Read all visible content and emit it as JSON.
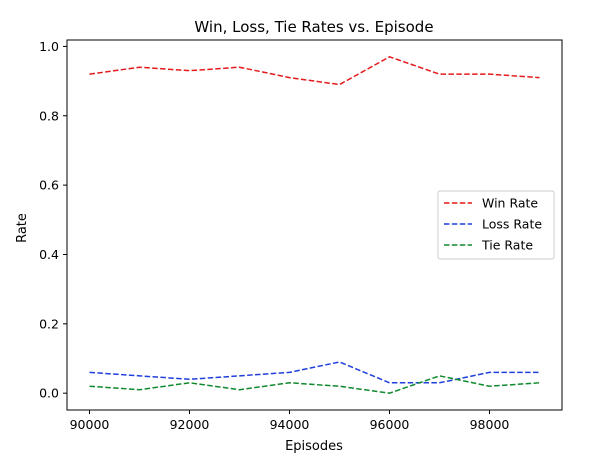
{
  "chart_data": {
    "type": "line",
    "title": "Win, Loss, Tie Rates vs. Episode",
    "xlabel": "Episodes",
    "ylabel": "Rate",
    "xlim": [
      89550,
      99450
    ],
    "ylim": [
      -0.0485,
      1.0185
    ],
    "xticks": [
      90000,
      92000,
      94000,
      96000,
      98000
    ],
    "yticks": [
      0.0,
      0.2,
      0.4,
      0.6,
      0.8,
      1.0
    ],
    "xtick_labels": [
      "90000",
      "92000",
      "94000",
      "96000",
      "98000"
    ],
    "ytick_labels": [
      "0.0",
      "0.2",
      "0.4",
      "0.6",
      "0.8",
      "1.0"
    ],
    "legend_position": "center-right",
    "grid": false,
    "x": [
      90000,
      91000,
      92000,
      93000,
      94000,
      95000,
      96000,
      97000,
      98000,
      99000
    ],
    "series": [
      {
        "name": "Win Rate",
        "color": "#e41a1c",
        "dash": "dashed",
        "values": [
          0.92,
          0.94,
          0.93,
          0.94,
          0.91,
          0.89,
          0.97,
          0.92,
          0.92,
          0.91
        ]
      },
      {
        "name": "Loss Rate",
        "color": "#1f3fdc",
        "dash": "dashed",
        "values": [
          0.06,
          0.05,
          0.04,
          0.05,
          0.06,
          0.09,
          0.03,
          0.03,
          0.06,
          0.06
        ]
      },
      {
        "name": "Tie Rate",
        "color": "#108a2e",
        "dash": "dashed",
        "values": [
          0.02,
          0.01,
          0.03,
          0.01,
          0.03,
          0.02,
          0.0,
          0.05,
          0.02,
          0.03
        ]
      }
    ]
  }
}
